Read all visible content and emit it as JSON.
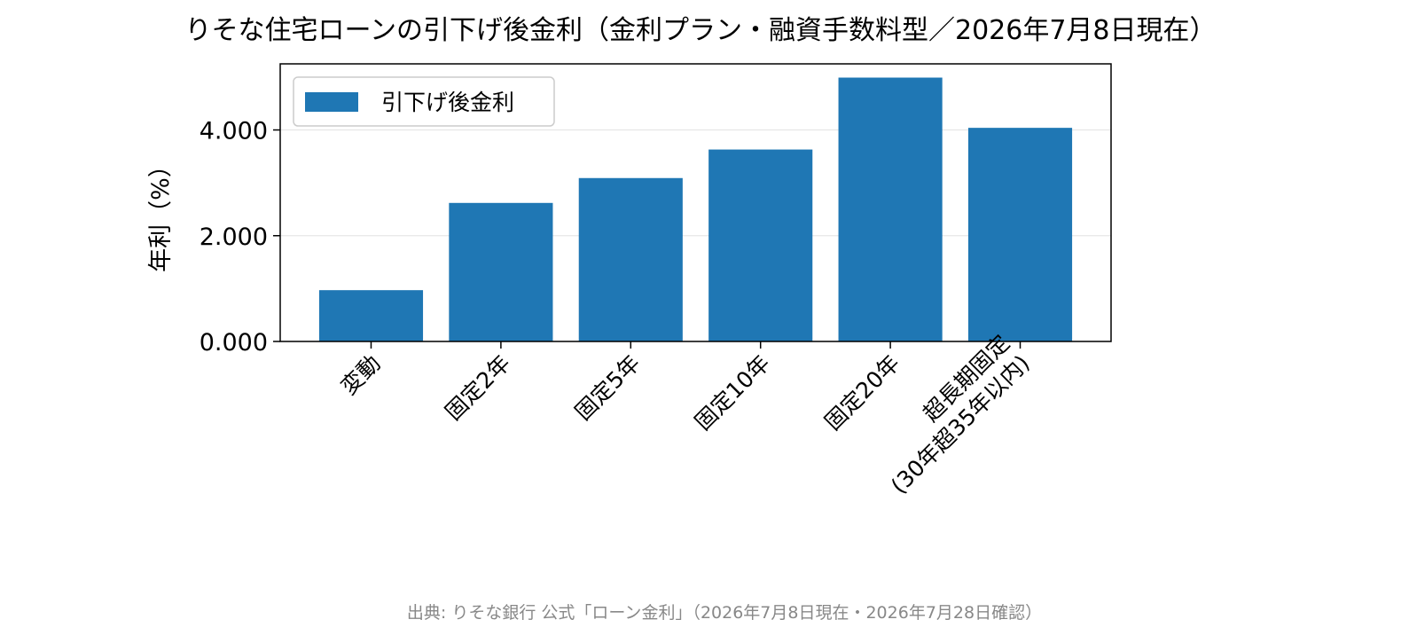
{
  "chart_data": {
    "type": "bar",
    "title": "りそな住宅ローンの引下げ後金利（金利プラン・融資手数料型／2026年7月8日現在）",
    "ylabel": "年利（%）",
    "xlabel": "",
    "categories": [
      "変動",
      "固定2年",
      "固定5年",
      "固定10年",
      "固定20年",
      "超長期固定\n(30年超35年以内)"
    ],
    "series": [
      {
        "name": "引下げ後金利",
        "values": [
          0.97,
          2.62,
          3.09,
          3.63,
          4.99,
          4.04
        ],
        "color": "#1f77b4"
      }
    ],
    "ylim": [
      0,
      5.25
    ],
    "yticks": [
      0,
      2,
      4
    ],
    "ytick_labels": [
      "0.000",
      "2.000",
      "4.000"
    ],
    "grid": "y",
    "legend": "top-left",
    "source": "出典: りそな銀行 公式「ローン金利」（2026年7月8日現在・2026年7月28日確認）"
  }
}
